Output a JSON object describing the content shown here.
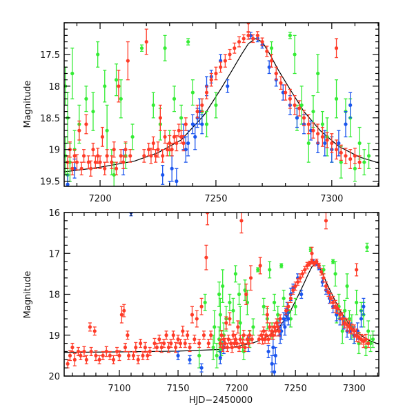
{
  "chart_data": [
    {
      "type": "scatter",
      "panel": "top",
      "title": "",
      "xlabel": "",
      "ylabel": "Magnitude",
      "xlim": [
        7184.5,
        7320.3
      ],
      "ylim": [
        19.58,
        17.0
      ],
      "y_inverted": true,
      "xticks": [
        7200,
        7250,
        7300
      ],
      "xtick_labels": [
        "7200",
        "7250",
        "7300"
      ],
      "x_minor_step": 10,
      "yticks": [
        17.5,
        18,
        18.5,
        19,
        19.5
      ],
      "ytick_labels": [
        "17.5",
        "18",
        "18.5",
        "19",
        "19.5"
      ],
      "y_minor_step": 0.1,
      "grid": false,
      "legend": "none"
    },
    {
      "type": "scatter",
      "panel": "bottom",
      "title": "",
      "xlabel": "HJD−2450000",
      "ylabel": "Magnitude",
      "xlim": [
        7053,
        7321
      ],
      "ylim": [
        20,
        16
      ],
      "y_inverted": true,
      "xticks": [
        7100,
        7150,
        7200,
        7250,
        7300
      ],
      "xtick_labels": [
        "7100",
        "7150",
        "7200",
        "7250",
        "7300"
      ],
      "x_minor_step": 10,
      "yticks": [
        16,
        17,
        18,
        19,
        20
      ],
      "ytick_labels": [
        "16",
        "17",
        "18",
        "19",
        "20"
      ],
      "y_minor_step": 0.2,
      "grid": false,
      "legend": "none"
    }
  ],
  "series": [
    {
      "name": "red",
      "color": "#ff3b28",
      "points": [
        [
          7056,
          19.7,
          0.1
        ],
        [
          7058,
          19.5,
          0.12
        ],
        [
          7060,
          19.3,
          0.1
        ],
        [
          7062,
          19.6,
          0.15
        ],
        [
          7065,
          19.4,
          0.1
        ],
        [
          7067,
          19.5,
          0.1
        ],
        [
          7070,
          19.4,
          0.12
        ],
        [
          7072,
          19.6,
          0.1
        ],
        [
          7075,
          18.8,
          0.1
        ],
        [
          7076,
          19.4,
          0.1
        ],
        [
          7079,
          18.9,
          0.1
        ],
        [
          7080,
          19.5,
          0.12
        ],
        [
          7083,
          19.6,
          0.1
        ],
        [
          7086,
          19.5,
          0.1
        ],
        [
          7089,
          19.4,
          0.12
        ],
        [
          7092,
          19.5,
          0.1
        ],
        [
          7095,
          19.6,
          0.1
        ],
        [
          7098,
          19.4,
          0.1
        ],
        [
          7100,
          19.5,
          0.12
        ],
        [
          7102,
          18.5,
          0.2
        ],
        [
          7104,
          18.4,
          0.15
        ],
        [
          7105,
          19.3,
          0.1
        ],
        [
          7107,
          19.0,
          0.1
        ],
        [
          7108,
          19.5,
          0.1
        ],
        [
          7112,
          19.5,
          0.1
        ],
        [
          7114,
          19.3,
          0.12
        ],
        [
          7116,
          19.6,
          0.1
        ],
        [
          7118,
          19.2,
          0.1
        ],
        [
          7120,
          19.5,
          0.1
        ],
        [
          7122,
          19.3,
          0.12
        ],
        [
          7124,
          19.5,
          0.1
        ],
        [
          7126,
          19.4,
          0.1
        ],
        [
          7130,
          19.2,
          0.12
        ],
        [
          7132,
          19.3,
          0.1
        ],
        [
          7134,
          19.1,
          0.1
        ],
        [
          7136,
          19.3,
          0.12
        ],
        [
          7138,
          19.2,
          0.1
        ],
        [
          7140,
          19.0,
          0.1
        ],
        [
          7142,
          19.3,
          0.12
        ],
        [
          7144,
          19.2,
          0.1
        ],
        [
          7146,
          19.0,
          0.1
        ],
        [
          7148,
          19.3,
          0.12
        ],
        [
          7150,
          19.1,
          0.1
        ],
        [
          7152,
          19.2,
          0.1
        ],
        [
          7154,
          18.9,
          0.12
        ],
        [
          7156,
          19.2,
          0.1
        ],
        [
          7158,
          19.0,
          0.1
        ],
        [
          7160,
          19.3,
          0.1
        ],
        [
          7162,
          18.5,
          0.2
        ],
        [
          7164,
          19.1,
          0.1
        ],
        [
          7166,
          18.6,
          0.2
        ],
        [
          7168,
          19.2,
          0.1
        ],
        [
          7170,
          18.3,
          0.2
        ],
        [
          7172,
          19.0,
          0.1
        ],
        [
          7174,
          17.1,
          0.3
        ],
        [
          7175,
          16.0,
          0.3
        ],
        [
          7176,
          19.2,
          0.1
        ],
        [
          7178,
          19.0,
          0.1
        ],
        [
          7186,
          19.2,
          0.1
        ],
        [
          7187,
          19.0,
          0.12
        ],
        [
          7188,
          19.3,
          0.1
        ],
        [
          7189,
          19.1,
          0.1
        ],
        [
          7190,
          19.2,
          0.12
        ],
        [
          7191,
          18.7,
          0.15
        ],
        [
          7192,
          19.3,
          0.1
        ],
        [
          7193,
          19.1,
          0.1
        ],
        [
          7194,
          18.6,
          0.15
        ],
        [
          7195,
          19.2,
          0.1
        ],
        [
          7196,
          19.3,
          0.12
        ],
        [
          7197,
          19.0,
          0.1
        ],
        [
          7198,
          19.2,
          0.1
        ],
        [
          7199,
          19.1,
          0.12
        ],
        [
          7200,
          19.2,
          0.1
        ],
        [
          7201,
          18.8,
          0.15
        ],
        [
          7202,
          19.3,
          0.1
        ],
        [
          7203,
          19.1,
          0.1
        ],
        [
          7204,
          16.2,
          0.3
        ],
        [
          7205,
          19.2,
          0.1
        ],
        [
          7206,
          19.0,
          0.12
        ],
        [
          7207,
          19.3,
          0.1
        ],
        [
          7208,
          18.0,
          0.25
        ],
        [
          7209,
          19.1,
          0.1
        ],
        [
          7210,
          19.2,
          0.1
        ],
        [
          7211,
          19.0,
          0.12
        ],
        [
          7212,
          17.6,
          0.3
        ],
        [
          7213,
          19.1,
          0.1
        ],
        [
          7219,
          19.1,
          0.1
        ],
        [
          7220,
          17.3,
          0.2
        ],
        [
          7221,
          19.0,
          0.1
        ],
        [
          7222,
          19.1,
          0.12
        ],
        [
          7223,
          18.9,
          0.1
        ],
        [
          7224,
          19.1,
          0.1
        ],
        [
          7225,
          19.0,
          0.12
        ],
        [
          7226,
          18.5,
          0.2
        ],
        [
          7227,
          19.1,
          0.1
        ],
        [
          7228,
          18.8,
          0.1
        ],
        [
          7229,
          19.0,
          0.1
        ],
        [
          7230,
          18.9,
          0.12
        ],
        [
          7231,
          19.0,
          0.1
        ],
        [
          7232,
          18.8,
          0.1
        ],
        [
          7233,
          18.9,
          0.12
        ],
        [
          7234,
          18.7,
          0.1
        ],
        [
          7235,
          18.8,
          0.1
        ],
        [
          7236,
          18.9,
          0.12
        ],
        [
          7237,
          18.6,
          0.1
        ],
        [
          7242,
          18.4,
          0.1
        ],
        [
          7244,
          18.3,
          0.1
        ],
        [
          7246,
          18.1,
          0.1
        ],
        [
          7248,
          17.9,
          0.1
        ],
        [
          7250,
          17.8,
          0.1
        ],
        [
          7252,
          17.7,
          0.08
        ],
        [
          7254,
          17.6,
          0.1
        ],
        [
          7256,
          17.5,
          0.08
        ],
        [
          7258,
          17.4,
          0.08
        ],
        [
          7260,
          17.3,
          0.08
        ],
        [
          7262,
          17.25,
          0.06
        ],
        [
          7264,
          17.2,
          0.06
        ],
        [
          7266,
          17.25,
          0.06
        ],
        [
          7268,
          17.2,
          0.06
        ],
        [
          7270,
          17.3,
          0.06
        ],
        [
          7272,
          17.45,
          0.08
        ],
        [
          7274,
          17.6,
          0.1
        ],
        [
          7276,
          17.8,
          0.1
        ],
        [
          7278,
          17.95,
          0.1
        ],
        [
          7280,
          18.1,
          0.12
        ],
        [
          7282,
          18.2,
          0.15
        ],
        [
          7284,
          18.3,
          0.15
        ],
        [
          7286,
          18.35,
          0.12
        ],
        [
          7288,
          18.5,
          0.12
        ],
        [
          7290,
          18.6,
          0.15
        ],
        [
          7292,
          18.7,
          0.12
        ],
        [
          7294,
          18.75,
          0.15
        ],
        [
          7296,
          18.8,
          0.15
        ],
        [
          7298,
          18.85,
          0.12
        ],
        [
          7300,
          18.9,
          0.15
        ],
        [
          7302,
          19.0,
          0.15
        ],
        [
          7304,
          19.05,
          0.12
        ],
        [
          7306,
          19.1,
          0.12
        ],
        [
          7308,
          19.15,
          0.15
        ],
        [
          7310,
          19.1,
          0.12
        ],
        [
          7312,
          19.2,
          0.1
        ],
        [
          7276,
          16.2,
          0.2
        ],
        [
          7264,
          17.0,
          0.15
        ],
        [
          7302,
          17.4,
          0.15
        ]
      ]
    },
    {
      "name": "green",
      "color": "#35ec35",
      "points": [
        [
          7185,
          18.0,
          0.3
        ],
        [
          7186,
          18.5,
          0.4
        ],
        [
          7187,
          19.2,
          0.3
        ],
        [
          7188,
          17.8,
          0.4
        ],
        [
          7189,
          19.0,
          0.3
        ],
        [
          7191,
          18.6,
          0.3
        ],
        [
          7194,
          18.2,
          0.2
        ],
        [
          7197,
          18.4,
          0.3
        ],
        [
          7199,
          17.5,
          0.2
        ],
        [
          7202,
          18.0,
          0.25
        ],
        [
          7205,
          19.2,
          0.2
        ],
        [
          7207,
          17.9,
          0.25
        ],
        [
          7209,
          18.2,
          0.3
        ],
        [
          7211,
          19.1,
          0.2
        ],
        [
          7214,
          18.8,
          0.2
        ],
        [
          7218,
          17.4,
          0.05
        ],
        [
          7223,
          18.3,
          0.2
        ],
        [
          7226,
          18.6,
          0.25
        ],
        [
          7228,
          17.4,
          0.2
        ],
        [
          7230,
          18.9,
          0.2
        ],
        [
          7232,
          18.2,
          0.2
        ],
        [
          7235,
          18.5,
          0.2
        ],
        [
          7238,
          17.3,
          0.05
        ],
        [
          7240,
          18.1,
          0.2
        ],
        [
          7244,
          18.4,
          0.2
        ],
        [
          7246,
          18.6,
          0.2
        ],
        [
          7250,
          18.3,
          0.2
        ],
        [
          7282,
          17.2,
          0.05
        ],
        [
          7284,
          17.5,
          0.3
        ],
        [
          7285,
          18.5,
          0.2
        ],
        [
          7287,
          18.3,
          0.3
        ],
        [
          7290,
          18.9,
          0.3
        ],
        [
          7292,
          18.4,
          0.25
        ],
        [
          7294,
          17.8,
          0.3
        ],
        [
          7296,
          18.6,
          0.2
        ],
        [
          7298,
          18.8,
          0.3
        ],
        [
          7300,
          19.0,
          0.2
        ],
        [
          7302,
          18.2,
          0.3
        ],
        [
          7304,
          19.2,
          0.25
        ],
        [
          7306,
          18.4,
          0.2
        ],
        [
          7308,
          18.5,
          0.3
        ],
        [
          7310,
          19.3,
          0.2
        ],
        [
          7312,
          18.9,
          0.25
        ],
        [
          7314,
          19.2,
          0.2
        ],
        [
          7316,
          19.1,
          0.2
        ],
        [
          7185,
          19.1,
          0.3
        ],
        [
          7186,
          19.4,
          0.2
        ],
        [
          7206,
          19.4,
          0.2
        ],
        [
          7180,
          19.3,
          0.3
        ],
        [
          7181,
          18.8,
          0.4
        ],
        [
          7183,
          19.5,
          0.3
        ],
        [
          7203,
          18.7,
          0.4
        ],
        [
          7168,
          19.5,
          0.3
        ],
        [
          7173,
          18.2,
          0.2
        ],
        [
          7263,
          16.9,
          0.05
        ],
        [
          7274,
          17.4,
          0.1
        ],
        [
          7311,
          16.85,
          0.1
        ]
      ]
    },
    {
      "name": "blue",
      "color": "#1b55ee",
      "points": [
        [
          7186,
          19.55,
          0.15
        ],
        [
          7189,
          19.3,
          0.15
        ],
        [
          7210,
          19.2,
          0.2
        ],
        [
          7227,
          19.4,
          0.15
        ],
        [
          7231,
          19.3,
          0.2
        ],
        [
          7233,
          19.5,
          0.2
        ],
        [
          7236,
          18.8,
          0.2
        ],
        [
          7237,
          19.0,
          0.2
        ],
        [
          7238,
          18.9,
          0.2
        ],
        [
          7240,
          18.6,
          0.15
        ],
        [
          7241,
          18.8,
          0.2
        ],
        [
          7242,
          18.5,
          0.15
        ],
        [
          7243,
          18.4,
          0.2
        ],
        [
          7244,
          18.6,
          0.15
        ],
        [
          7246,
          18.0,
          0.15
        ],
        [
          7248,
          17.85,
          0.1
        ],
        [
          7252,
          17.6,
          0.1
        ],
        [
          7255,
          18.0,
          0.1
        ],
        [
          7265,
          17.2,
          0.05
        ],
        [
          7268,
          17.25,
          0.05
        ],
        [
          7270,
          17.35,
          0.05
        ],
        [
          7273,
          17.7,
          0.1
        ],
        [
          7276,
          17.9,
          0.1
        ],
        [
          7279,
          18.1,
          0.12
        ],
        [
          7282,
          18.3,
          0.15
        ],
        [
          7285,
          18.5,
          0.15
        ],
        [
          7288,
          18.6,
          0.15
        ],
        [
          7291,
          18.7,
          0.15
        ],
        [
          7294,
          18.9,
          0.15
        ],
        [
          7297,
          18.9,
          0.2
        ],
        [
          7300,
          19.0,
          0.2
        ],
        [
          7303,
          18.9,
          0.2
        ],
        [
          7306,
          18.6,
          0.2
        ],
        [
          7308,
          18.3,
          0.2
        ],
        [
          7110,
          16.0,
          0.08
        ],
        [
          7150,
          19.5,
          0.1
        ],
        [
          7160,
          19.6,
          0.1
        ],
        [
          7170,
          19.8,
          0.1
        ],
        [
          7230,
          19.7,
          0.2
        ],
        [
          7232,
          19.9,
          0.2
        ]
      ]
    }
  ],
  "model_curve": {
    "color": "#000000",
    "points": [
      [
        7053,
        19.42
      ],
      [
        7100,
        19.41
      ],
      [
        7150,
        19.39
      ],
      [
        7185,
        19.35
      ],
      [
        7200,
        19.28
      ],
      [
        7215,
        19.18
      ],
      [
        7225,
        19.05
      ],
      [
        7235,
        18.85
      ],
      [
        7245,
        18.45
      ],
      [
        7252,
        18.05
      ],
      [
        7257,
        17.75
      ],
      [
        7261,
        17.5
      ],
      [
        7264,
        17.33
      ],
      [
        7267,
        17.25
      ],
      [
        7270,
        17.3
      ],
      [
        7273,
        17.48
      ],
      [
        7277,
        17.75
      ],
      [
        7282,
        18.05
      ],
      [
        7288,
        18.4
      ],
      [
        7295,
        18.7
      ],
      [
        7303,
        18.95
      ],
      [
        7312,
        19.12
      ],
      [
        7321,
        19.22
      ]
    ]
  }
}
